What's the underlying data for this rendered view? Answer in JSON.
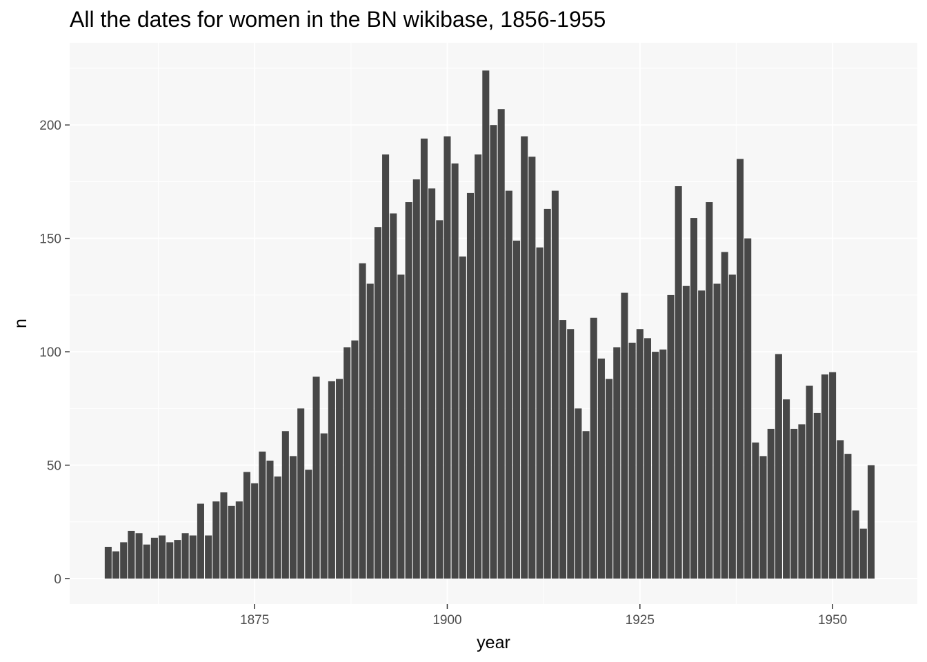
{
  "chart_data": {
    "type": "bar",
    "title": "All the dates for women in the BN wikibase, 1856-1955",
    "xlabel": "year",
    "ylabel": "n",
    "x_range": [
      1851,
      1961
    ],
    "ylim": [
      -11.25,
      236.25
    ],
    "x_ticks": [
      1875,
      1900,
      1925,
      1950
    ],
    "y_ticks": [
      0,
      50,
      100,
      150,
      200
    ],
    "grid": true,
    "bar_color": "#474747",
    "panel_color": "#f7f7f7",
    "grid_color": "#ffffff",
    "years": [
      1856,
      1857,
      1858,
      1859,
      1860,
      1861,
      1862,
      1863,
      1864,
      1865,
      1866,
      1867,
      1868,
      1869,
      1870,
      1871,
      1872,
      1873,
      1874,
      1875,
      1876,
      1877,
      1878,
      1879,
      1880,
      1881,
      1882,
      1883,
      1884,
      1885,
      1886,
      1887,
      1888,
      1889,
      1890,
      1891,
      1892,
      1893,
      1894,
      1895,
      1896,
      1897,
      1898,
      1899,
      1900,
      1901,
      1902,
      1903,
      1904,
      1905,
      1906,
      1907,
      1908,
      1909,
      1910,
      1911,
      1912,
      1913,
      1914,
      1915,
      1916,
      1917,
      1918,
      1919,
      1920,
      1921,
      1922,
      1923,
      1924,
      1925,
      1926,
      1927,
      1928,
      1929,
      1930,
      1931,
      1932,
      1933,
      1934,
      1935,
      1936,
      1937,
      1938,
      1939,
      1940,
      1941,
      1942,
      1943,
      1944,
      1945,
      1946,
      1947,
      1948,
      1949,
      1950,
      1951,
      1952,
      1953,
      1954,
      1955
    ],
    "values": [
      14,
      12,
      16,
      21,
      20,
      15,
      18,
      19,
      16,
      17,
      20,
      19,
      33,
      19,
      34,
      38,
      32,
      34,
      47,
      42,
      56,
      52,
      45,
      65,
      54,
      75,
      48,
      89,
      64,
      87,
      88,
      102,
      105,
      139,
      130,
      155,
      187,
      161,
      134,
      166,
      176,
      194,
      172,
      158,
      195,
      183,
      142,
      170,
      187,
      224,
      200,
      207,
      171,
      149,
      195,
      186,
      146,
      163,
      171,
      114,
      110,
      75,
      65,
      115,
      97,
      88,
      102,
      126,
      104,
      110,
      106,
      100,
      101,
      125,
      173,
      129,
      159,
      127,
      166,
      130,
      144,
      134,
      185,
      150,
      60,
      54,
      66,
      99,
      79,
      66,
      68,
      85,
      73,
      90,
      91,
      61,
      55,
      30,
      22,
      50
    ]
  }
}
